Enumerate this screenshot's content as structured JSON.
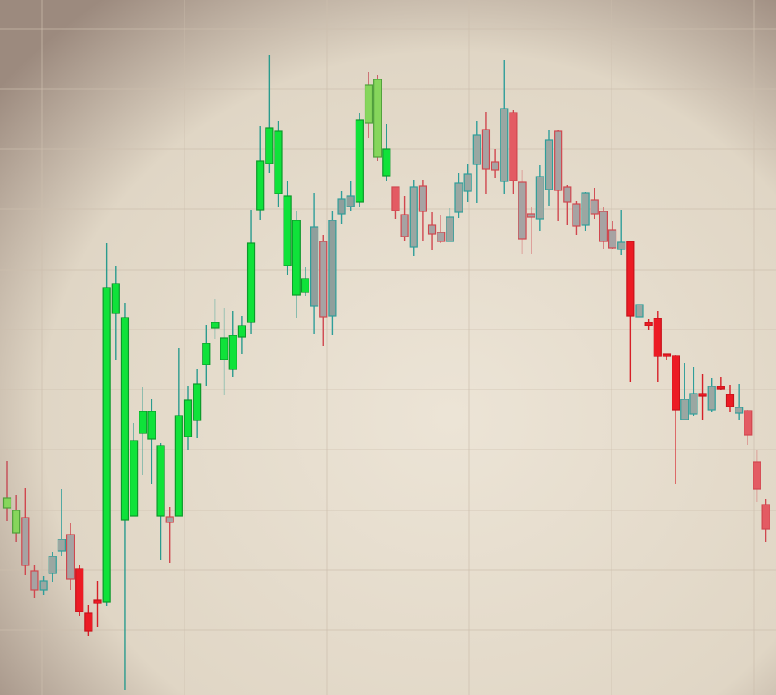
{
  "chart_data": {
    "type": "candlestick",
    "title": "",
    "xlabel": "",
    "ylabel": "",
    "ylim": [
      0,
      858
    ],
    "xlim": [
      0,
      80
    ],
    "grid": true,
    "colors": {
      "background": "#e4dccd",
      "grid": "#cdbfae",
      "bull_bright": "#0fe23a",
      "bull_soft": "#86d65c",
      "teal": "#2f9e9a",
      "gray_body": "#a6a3a3",
      "bear_bright": "#ec1b24",
      "bear_soft": "#e35b63"
    },
    "candles": [
      {
        "i": 0,
        "o": 243,
        "c": 231,
        "h": 289,
        "l": 215,
        "style": "soft-bull"
      },
      {
        "i": 1,
        "o": 200,
        "c": 228,
        "h": 247,
        "l": 189,
        "style": "soft-bull"
      },
      {
        "i": 2,
        "o": 160,
        "c": 219,
        "h": 255,
        "l": 148,
        "style": "gray-bear"
      },
      {
        "i": 3,
        "o": 130,
        "c": 153,
        "h": 160,
        "l": 120,
        "style": "gray-bear"
      },
      {
        "i": 4,
        "o": 130,
        "c": 141,
        "h": 147,
        "l": 123,
        "style": "teal"
      },
      {
        "i": 5,
        "o": 150,
        "c": 171,
        "h": 176,
        "l": 140,
        "style": "teal"
      },
      {
        "i": 6,
        "o": 178,
        "c": 192,
        "h": 254,
        "l": 172,
        "style": "teal"
      },
      {
        "i": 7,
        "o": 143,
        "c": 198,
        "h": 212,
        "l": 130,
        "style": "gray-bear"
      },
      {
        "i": 8,
        "o": 103,
        "c": 156,
        "h": 161,
        "l": 98,
        "style": "bear"
      },
      {
        "i": 9,
        "o": 79,
        "c": 101,
        "h": 111,
        "l": 73,
        "style": "bear"
      },
      {
        "i": 10,
        "o": 113,
        "c": 117,
        "h": 141,
        "l": 84,
        "style": "bear"
      },
      {
        "i": 11,
        "o": 115,
        "c": 503,
        "h": 558,
        "l": 110,
        "style": "bull"
      },
      {
        "i": 12,
        "o": 471,
        "c": 508,
        "h": 530,
        "l": 414,
        "style": "bull"
      },
      {
        "i": 13,
        "o": 216,
        "c": 466,
        "h": 484,
        "l": 6,
        "style": "bull"
      },
      {
        "i": 14,
        "o": 221,
        "c": 314,
        "h": 336,
        "l": 225,
        "style": "bull"
      },
      {
        "i": 15,
        "o": 323,
        "c": 350,
        "h": 380,
        "l": 272,
        "style": "bull"
      },
      {
        "i": 16,
        "o": 316,
        "c": 350,
        "h": 366,
        "l": 260,
        "style": "bull"
      },
      {
        "i": 17,
        "o": 221,
        "c": 308,
        "h": 311,
        "l": 167,
        "style": "bull"
      },
      {
        "i": 18,
        "o": 213,
        "c": 220,
        "h": 232,
        "l": 163,
        "style": "gray-bear"
      },
      {
        "i": 19,
        "o": 221,
        "c": 345,
        "h": 429,
        "l": 221,
        "style": "bull"
      },
      {
        "i": 20,
        "o": 319,
        "c": 364,
        "h": 381,
        "l": 302,
        "style": "bull"
      },
      {
        "i": 21,
        "o": 339,
        "c": 384,
        "h": 402,
        "l": 317,
        "style": "bull"
      },
      {
        "i": 22,
        "o": 408,
        "c": 434,
        "h": 457,
        "l": 381,
        "style": "bull"
      },
      {
        "i": 23,
        "o": 453,
        "c": 460,
        "h": 489,
        "l": 440,
        "style": "bull"
      },
      {
        "i": 24,
        "o": 414,
        "c": 441,
        "h": 478,
        "l": 370,
        "style": "bull"
      },
      {
        "i": 25,
        "o": 402,
        "c": 444,
        "h": 474,
        "l": 392,
        "style": "bull"
      },
      {
        "i": 26,
        "o": 442,
        "c": 456,
        "h": 468,
        "l": 421,
        "style": "bull"
      },
      {
        "i": 27,
        "o": 460,
        "c": 558,
        "h": 599,
        "l": 446,
        "style": "bull"
      },
      {
        "i": 28,
        "o": 599,
        "c": 659,
        "h": 703,
        "l": 587,
        "style": "bull"
      },
      {
        "i": 29,
        "o": 656,
        "c": 700,
        "h": 790,
        "l": 645,
        "style": "bull"
      },
      {
        "i": 30,
        "o": 619,
        "c": 696,
        "h": 709,
        "l": 602,
        "style": "bull"
      },
      {
        "i": 31,
        "o": 530,
        "c": 616,
        "h": 635,
        "l": 519,
        "style": "bull"
      },
      {
        "i": 32,
        "o": 494,
        "c": 586,
        "h": 598,
        "l": 465,
        "style": "bull"
      },
      {
        "i": 33,
        "o": 497,
        "c": 514,
        "h": 528,
        "l": 493,
        "style": "bull"
      },
      {
        "i": 34,
        "o": 480,
        "c": 578,
        "h": 620,
        "l": 446,
        "style": "gray-bull"
      },
      {
        "i": 35,
        "o": 467,
        "c": 560,
        "h": 568,
        "l": 431,
        "style": "gray-bear"
      },
      {
        "i": 36,
        "o": 468,
        "c": 586,
        "h": 598,
        "l": 445,
        "style": "gray-bull"
      },
      {
        "i": 37,
        "o": 594,
        "c": 612,
        "h": 622,
        "l": 582,
        "style": "gray-bull"
      },
      {
        "i": 38,
        "o": 603,
        "c": 616,
        "h": 634,
        "l": 597,
        "style": "gray-bull"
      },
      {
        "i": 39,
        "o": 609,
        "c": 710,
        "h": 718,
        "l": 602,
        "style": "bull"
      },
      {
        "i": 40,
        "o": 706,
        "c": 753,
        "h": 769,
        "l": 688,
        "style": "soft-bull"
      },
      {
        "i": 41,
        "o": 664,
        "c": 760,
        "h": 765,
        "l": 659,
        "style": "soft-bull"
      },
      {
        "i": 42,
        "o": 641,
        "c": 674,
        "h": 705,
        "l": 634,
        "style": "bull"
      },
      {
        "i": 43,
        "o": 598,
        "c": 627,
        "h": 625,
        "l": 588,
        "style": "soft-bear"
      },
      {
        "i": 44,
        "o": 566,
        "c": 593,
        "h": 616,
        "l": 560,
        "style": "gray-bear"
      },
      {
        "i": 45,
        "o": 553,
        "c": 627,
        "h": 636,
        "l": 542,
        "style": "teal"
      },
      {
        "i": 46,
        "o": 597,
        "c": 628,
        "h": 636,
        "l": 560,
        "style": "gray-bear"
      },
      {
        "i": 47,
        "o": 569,
        "c": 580,
        "h": 596,
        "l": 549,
        "style": "gray-bear"
      },
      {
        "i": 48,
        "o": 560,
        "c": 571,
        "h": 592,
        "l": 558,
        "style": "gray-bear"
      },
      {
        "i": 49,
        "o": 560,
        "c": 590,
        "h": 601,
        "l": 562,
        "style": "teal"
      },
      {
        "i": 50,
        "o": 596,
        "c": 632,
        "h": 645,
        "l": 589,
        "style": "teal"
      },
      {
        "i": 51,
        "o": 622,
        "c": 643,
        "h": 655,
        "l": 609,
        "style": "teal"
      },
      {
        "i": 52,
        "o": 655,
        "c": 691,
        "h": 709,
        "l": 607,
        "style": "teal"
      },
      {
        "i": 53,
        "o": 649,
        "c": 698,
        "h": 720,
        "l": 618,
        "style": "gray-bear"
      },
      {
        "i": 54,
        "o": 648,
        "c": 658,
        "h": 674,
        "l": 638,
        "style": "gray-bear"
      },
      {
        "i": 55,
        "o": 634,
        "c": 724,
        "h": 784,
        "l": 619,
        "style": "teal"
      },
      {
        "i": 56,
        "o": 635,
        "c": 719,
        "h": 722,
        "l": 619,
        "style": "soft-bear"
      },
      {
        "i": 57,
        "o": 563,
        "c": 633,
        "h": 648,
        "l": 545,
        "style": "gray-bear"
      },
      {
        "i": 58,
        "o": 590,
        "c": 594,
        "h": 602,
        "l": 545,
        "style": "gray-bear"
      },
      {
        "i": 59,
        "o": 588,
        "c": 640,
        "h": 654,
        "l": 573,
        "style": "teal"
      },
      {
        "i": 60,
        "o": 624,
        "c": 685,
        "h": 697,
        "l": 604,
        "style": "teal"
      },
      {
        "i": 61,
        "o": 623,
        "c": 696,
        "h": 697,
        "l": 585,
        "style": "gray-bear"
      },
      {
        "i": 62,
        "o": 609,
        "c": 627,
        "h": 630,
        "l": 580,
        "style": "gray-bear"
      },
      {
        "i": 63,
        "o": 579,
        "c": 606,
        "h": 610,
        "l": 568,
        "style": "gray-bear"
      },
      {
        "i": 64,
        "o": 580,
        "c": 620,
        "h": 621,
        "l": 573,
        "style": "teal"
      },
      {
        "i": 65,
        "o": 594,
        "c": 611,
        "h": 626,
        "l": 588,
        "style": "gray-bear"
      },
      {
        "i": 66,
        "o": 560,
        "c": 597,
        "h": 602,
        "l": 550,
        "style": "gray-bear"
      },
      {
        "i": 67,
        "o": 552,
        "c": 574,
        "h": 585,
        "l": 550,
        "style": "gray-bear"
      },
      {
        "i": 68,
        "o": 550,
        "c": 559,
        "h": 599,
        "l": 543,
        "style": "teal"
      },
      {
        "i": 69,
        "o": 468,
        "c": 560,
        "h": 561,
        "l": 386,
        "style": "bear"
      },
      {
        "i": 70,
        "o": 467,
        "c": 482,
        "h": 482,
        "l": 467,
        "style": "teal"
      },
      {
        "i": 71,
        "o": 456,
        "c": 460,
        "h": 464,
        "l": 450,
        "style": "bear"
      },
      {
        "i": 72,
        "o": 418,
        "c": 465,
        "h": 474,
        "l": 387,
        "style": "bear"
      },
      {
        "i": 73,
        "o": 418,
        "c": 421,
        "h": 420,
        "l": 413,
        "style": "bear"
      },
      {
        "i": 74,
        "o": 352,
        "c": 419,
        "h": 420,
        "l": 261,
        "style": "bear"
      },
      {
        "i": 75,
        "o": 340,
        "c": 365,
        "h": 410,
        "l": 339,
        "style": "teal"
      },
      {
        "i": 76,
        "o": 347,
        "c": 372,
        "h": 405,
        "l": 344,
        "style": "teal"
      },
      {
        "i": 77,
        "o": 370,
        "c": 372,
        "h": 396,
        "l": 340,
        "style": "bear"
      },
      {
        "i": 78,
        "o": 352,
        "c": 381,
        "h": 391,
        "l": 349,
        "style": "teal"
      },
      {
        "i": 79,
        "o": 380,
        "c": 381,
        "h": 392,
        "l": 376,
        "style": "bear"
      },
      {
        "i": 80,
        "o": 356,
        "c": 371,
        "h": 383,
        "l": 349,
        "style": "bear"
      },
      {
        "i": 81,
        "o": 348,
        "c": 355,
        "h": 384,
        "l": 339,
        "style": "teal"
      },
      {
        "i": 82,
        "o": 321,
        "c": 351,
        "h": 352,
        "l": 309,
        "style": "soft-bear"
      },
      {
        "i": 83,
        "o": 254,
        "c": 288,
        "h": 302,
        "l": 238,
        "style": "soft-bear"
      },
      {
        "i": 84,
        "o": 205,
        "c": 235,
        "h": 242,
        "l": 189,
        "style": "soft-bear"
      }
    ]
  }
}
